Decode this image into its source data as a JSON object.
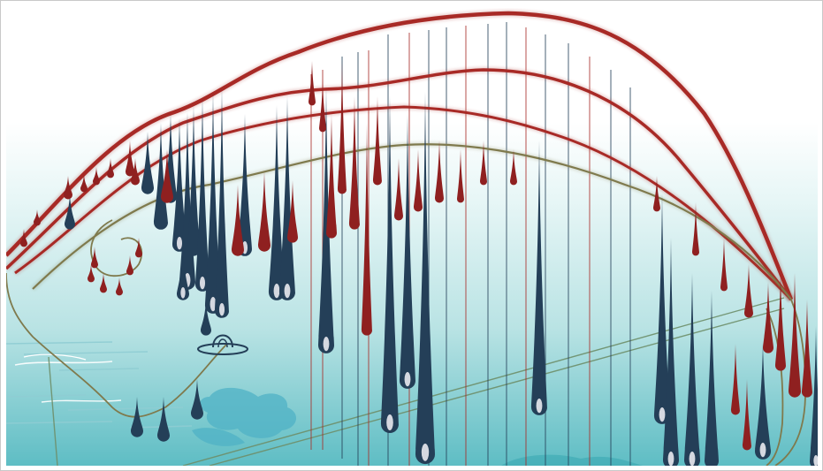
{
  "image": {
    "kind": "illustration",
    "palette": {
      "sky_top": "#ffffff",
      "sky_mid": "#e7f6f6",
      "water_light": "#b9e3e4",
      "water_deep": "#3aa8b2",
      "red_line": "#a82a26",
      "olive_line": "#7f7a4d",
      "drop_navy": "#243f58",
      "drop_red": "#8f2020",
      "highlight": "#e9e9ef",
      "splash": "#4fb2c6"
    }
  }
}
